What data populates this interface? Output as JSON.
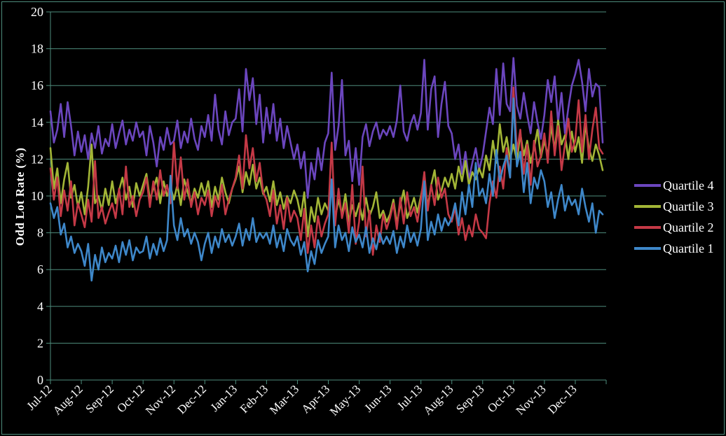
{
  "figure": {
    "background_color": "#000000",
    "frame_color": "#4E8C7C",
    "text_color": "#FFFFFF"
  },
  "chart_data": {
    "type": "line",
    "title": "",
    "xlabel": "",
    "ylabel": "Odd Lot Rate (%)",
    "ylim": [
      0,
      20
    ],
    "ytick_step": 2,
    "ytick_labels": [
      "0",
      "2",
      "4",
      "6",
      "8",
      "10",
      "12",
      "14",
      "16",
      "18",
      "20"
    ],
    "grid": true,
    "grid_color": "#4E8C7C",
    "legend_position": "right-middle",
    "x_tick_labels": [
      "Jul-12",
      "Aug-12",
      "Sep-12",
      "Oct-12",
      "Nov-12",
      "Dec-12",
      "Jan-13",
      "Feb-13",
      "Mar-13",
      "Apr-13",
      "May-13",
      "Jun-13",
      "Jul-13",
      "Aug-13",
      "Sep-13",
      "Oct-13",
      "Nov-13",
      "Dec-13"
    ],
    "points_per_month": 9,
    "series": [
      {
        "name": "Quartile 4",
        "color": "#6B46BE",
        "values": [
          14.6,
          12.9,
          13.6,
          15.0,
          13.2,
          15.1,
          13.8,
          12.2,
          13.5,
          12.4,
          13.3,
          12.0,
          13.4,
          12.6,
          13.8,
          12.3,
          13.1,
          12.7,
          13.9,
          12.6,
          13.4,
          14.1,
          12.8,
          13.6,
          13.0,
          14.0,
          13.2,
          13.5,
          12.2,
          13.8,
          12.9,
          11.6,
          13.2,
          12.5,
          13.7,
          12.8,
          13.0,
          14.1,
          12.6,
          13.5,
          12.9,
          14.2,
          13.1,
          12.5,
          13.8,
          13.2,
          14.4,
          13.0,
          15.5,
          13.6,
          12.8,
          14.6,
          13.3,
          14.0,
          14.2,
          15.8,
          13.5,
          16.9,
          15.2,
          16.4,
          13.9,
          15.5,
          12.9,
          14.8,
          13.4,
          15.0,
          13.0,
          14.2,
          12.6,
          13.8,
          12.9,
          12.0,
          12.8,
          11.5,
          12.4,
          9.9,
          11.8,
          10.9,
          12.6,
          11.4,
          12.9,
          13.4,
          16.7,
          12.5,
          13.8,
          16.3,
          12.2,
          13.0,
          10.8,
          12.6,
          10.6,
          13.2,
          13.9,
          12.7,
          13.5,
          14.0,
          13.1,
          13.6,
          13.3,
          13.8,
          13.2,
          14.1,
          16.0,
          13.5,
          13.0,
          13.9,
          14.4,
          13.6,
          14.5,
          17.4,
          13.6,
          15.8,
          16.5,
          13.2,
          15.0,
          16.2,
          13.8,
          13.4,
          12.0,
          12.8,
          11.2,
          12.4,
          10.9,
          11.8,
          12.6,
          11.4,
          12.2,
          13.5,
          14.8,
          13.9,
          16.9,
          14.4,
          17.2,
          15.0,
          14.6,
          17.5,
          14.9,
          14.2,
          15.6,
          14.4,
          13.4,
          15.1,
          14.0,
          13.1,
          14.4,
          16.3,
          15.1,
          16.5,
          14.0,
          15.6,
          13.4,
          14.8,
          16.0,
          16.6,
          17.4,
          16.2,
          14.6,
          16.9,
          15.4,
          16.1,
          15.9,
          12.9
        ]
      },
      {
        "name": "Quartile 3",
        "color": "#A2B536",
        "values": [
          12.6,
          10.4,
          11.5,
          9.6,
          10.9,
          11.8,
          9.9,
          10.6,
          9.4,
          10.2,
          9.0,
          10.5,
          12.8,
          9.6,
          10.0,
          9.2,
          10.4,
          9.5,
          10.8,
          9.6,
          10.3,
          11.0,
          9.8,
          10.5,
          9.4,
          10.7,
          10.0,
          10.6,
          11.2,
          9.8,
          10.4,
          11.0,
          9.6,
          10.8,
          10.0,
          10.5,
          9.8,
          10.6,
          9.5,
          10.9,
          10.2,
          9.6,
          10.4,
          9.9,
          10.7,
          10.0,
          10.8,
          9.4,
          10.5,
          9.8,
          11.0,
          10.2,
          9.6,
          10.4,
          10.9,
          11.6,
          10.2,
          11.3,
          10.6,
          11.7,
          10.4,
          11.0,
          10.1,
          10.5,
          9.7,
          10.8,
          9.5,
          10.2,
          9.3,
          10.0,
          9.6,
          10.3,
          9.8,
          8.9,
          10.2,
          7.8,
          9.4,
          8.6,
          9.9,
          9.0,
          9.6,
          9.2,
          10.4,
          8.8,
          9.8,
          9.0,
          10.1,
          8.6,
          9.5,
          8.9,
          9.6,
          8.7,
          9.9,
          8.9,
          9.4,
          10.2,
          8.8,
          9.2,
          8.6,
          9.0,
          9.8,
          8.5,
          9.5,
          10.3,
          8.8,
          9.3,
          9.9,
          9.1,
          10.0,
          10.9,
          9.4,
          10.6,
          11.4,
          9.8,
          10.3,
          11.0,
          10.5,
          11.2,
          10.4,
          11.6,
          10.8,
          11.9,
          10.6,
          11.3,
          10.9,
          11.5,
          11.0,
          12.2,
          11.4,
          13.0,
          11.8,
          13.9,
          12.4,
          13.2,
          12.0,
          12.8,
          11.9,
          13.4,
          12.2,
          13.0,
          11.8,
          12.6,
          13.6,
          12.1,
          13.0,
          12.2,
          13.8,
          12.5,
          14.1,
          12.8,
          13.3,
          12.0,
          13.5,
          12.4,
          13.2,
          11.8,
          13.9,
          12.6,
          11.9,
          12.8,
          12.2,
          11.4
        ]
      },
      {
        "name": "Quartile 2",
        "color": "#C43946",
        "values": [
          11.5,
          9.8,
          11.0,
          8.9,
          10.3,
          9.2,
          10.8,
          8.4,
          9.6,
          9.0,
          8.3,
          9.8,
          8.6,
          11.9,
          8.8,
          9.4,
          8.5,
          9.1,
          9.6,
          8.8,
          10.4,
          9.0,
          11.6,
          9.4,
          10.0,
          8.9,
          9.8,
          10.2,
          11.0,
          9.4,
          10.8,
          9.8,
          11.4,
          10.0,
          10.6,
          9.6,
          12.9,
          10.4,
          12.1,
          9.8,
          10.9,
          9.4,
          10.2,
          9.0,
          9.9,
          9.5,
          10.3,
          8.9,
          10.0,
          9.4,
          10.6,
          9.0,
          9.8,
          10.4,
          11.0,
          12.2,
          10.4,
          13.3,
          11.5,
          12.6,
          10.8,
          11.8,
          10.2,
          9.8,
          8.9,
          10.3,
          8.5,
          9.5,
          8.2,
          9.9,
          8.6,
          9.2,
          8.8,
          7.6,
          9.3,
          6.9,
          8.4,
          7.2,
          8.9,
          7.8,
          8.5,
          9.0,
          12.9,
          8.4,
          10.4,
          8.8,
          9.6,
          8.0,
          10.6,
          7.4,
          8.6,
          11.6,
          7.8,
          9.2,
          6.8,
          8.4,
          7.5,
          9.0,
          8.2,
          8.8,
          9.6,
          8.2,
          9.9,
          8.5,
          10.2,
          8.9,
          9.4,
          8.6,
          9.8,
          11.3,
          9.2,
          10.6,
          9.5,
          11.0,
          9.9,
          10.4,
          9.0,
          8.6,
          9.4,
          7.9,
          8.8,
          7.6,
          8.4,
          7.8,
          9.0,
          8.2,
          8.0,
          7.7,
          9.6,
          10.8,
          9.9,
          11.6,
          10.4,
          12.6,
          11.0,
          15.9,
          12.4,
          13.6,
          11.2,
          12.8,
          10.6,
          13.0,
          11.6,
          12.2,
          13.4,
          11.8,
          14.6,
          12.2,
          13.8,
          11.4,
          12.8,
          14.2,
          12.4,
          13.0,
          15.2,
          12.4,
          14.4,
          12.0,
          13.6,
          14.8,
          12.6,
          12.3
        ]
      },
      {
        "name": "Quartile 1",
        "color": "#3E87C9",
        "values": [
          9.6,
          8.8,
          9.4,
          7.9,
          8.5,
          7.2,
          7.8,
          6.9,
          7.4,
          7.0,
          6.2,
          7.4,
          5.4,
          6.8,
          6.0,
          7.2,
          6.4,
          6.9,
          6.6,
          7.3,
          6.4,
          7.5,
          6.8,
          7.6,
          6.5,
          7.2,
          6.9,
          7.0,
          7.8,
          6.6,
          7.4,
          6.8,
          7.7,
          7.0,
          7.6,
          11.1,
          8.4,
          7.6,
          8.8,
          7.8,
          8.2,
          7.4,
          8.0,
          7.5,
          6.5,
          7.4,
          8.0,
          6.9,
          7.8,
          7.2,
          8.2,
          7.5,
          7.9,
          7.3,
          7.8,
          8.5,
          7.3,
          8.2,
          7.6,
          8.8,
          7.5,
          8.0,
          7.7,
          8.0,
          7.4,
          8.4,
          7.2,
          7.9,
          7.0,
          8.2,
          7.6,
          7.3,
          7.8,
          6.8,
          7.5,
          5.9,
          7.0,
          6.3,
          7.6,
          6.9,
          7.4,
          7.8,
          10.9,
          7.2,
          8.4,
          7.6,
          8.0,
          7.0,
          8.3,
          7.5,
          7.9,
          7.2,
          8.3,
          6.9,
          7.7,
          7.1,
          8.0,
          7.4,
          7.8,
          7.4,
          8.1,
          6.9,
          7.8,
          7.2,
          8.4,
          7.5,
          8.0,
          7.3,
          8.2,
          10.8,
          7.6,
          8.6,
          7.9,
          9.0,
          8.1,
          8.8,
          8.4,
          8.8,
          9.6,
          8.4,
          10.2,
          9.0,
          10.6,
          9.4,
          11.8,
          10.0,
          10.4,
          9.6,
          11.2,
          10.0,
          12.5,
          10.8,
          11.6,
          12.2,
          11.0,
          15.3,
          11.6,
          12.4,
          10.2,
          11.8,
          9.6,
          11.0,
          10.4,
          11.4,
          10.8,
          9.4,
          10.2,
          8.8,
          9.8,
          10.6,
          9.2,
          10.0,
          9.5,
          9.8,
          9.0,
          10.4,
          9.4,
          8.6,
          9.6,
          8.0,
          9.2,
          9.0
        ]
      }
    ]
  }
}
